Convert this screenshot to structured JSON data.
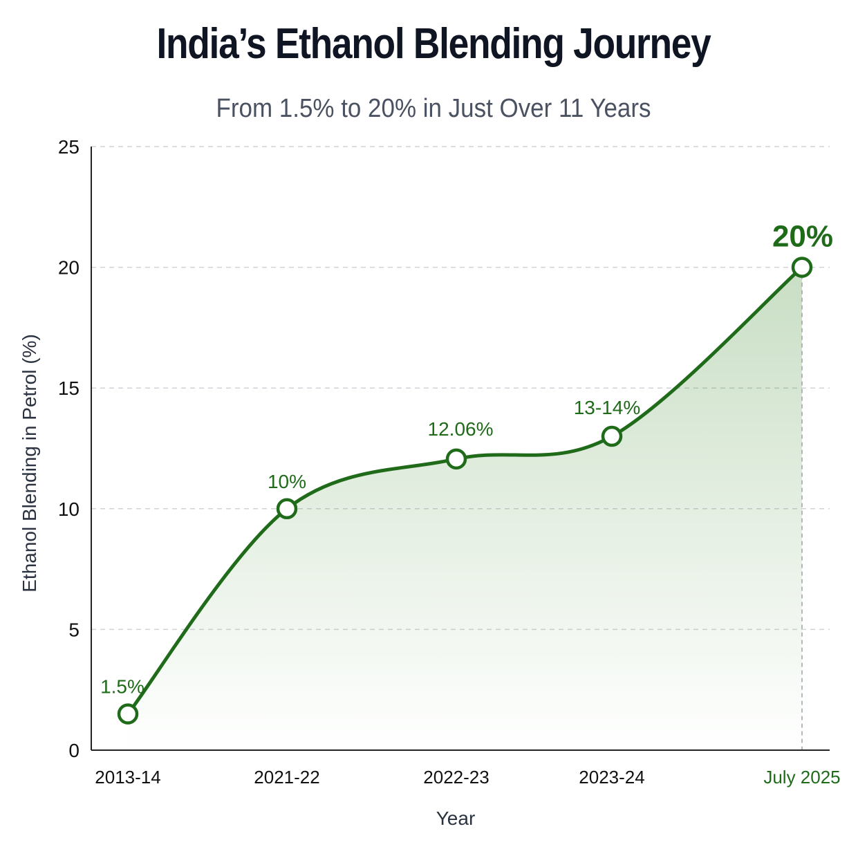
{
  "chart_data": {
    "type": "area",
    "title": "India’s Ethanol Blending Journey",
    "subtitle": "From 1.5% to 20% in Just Over 11 Years",
    "xlabel": "Year",
    "ylabel": "Ethanol Blending in Petrol (%)",
    "categories": [
      "2013-14",
      "2021-22",
      "2022-23",
      "2023-24",
      "July 2025"
    ],
    "series": [
      {
        "values": [
          1.5,
          10,
          12.06,
          13,
          20
        ]
      }
    ],
    "data_labels": [
      "1.5%",
      "10%",
      "12.06%",
      "13-14%",
      "20%"
    ],
    "ylim": [
      0,
      25
    ],
    "yticks": [
      0,
      5,
      10,
      15,
      20,
      25
    ],
    "grid": true,
    "colors": {
      "line": "#1f6b1a",
      "fill": "#3d8a2e",
      "highlight_label": "#1f6b1a"
    }
  }
}
